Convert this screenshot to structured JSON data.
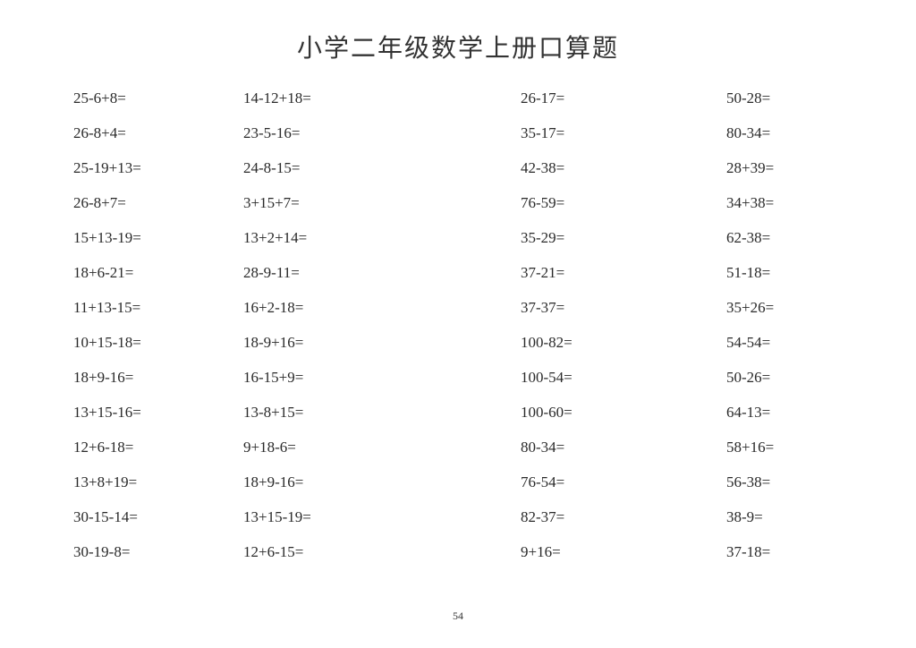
{
  "title": "小学二年级数学上册口算题",
  "page_number": "54",
  "background_color": "#ffffff",
  "text_color": "#333333",
  "title_fontsize": 28,
  "cell_fontsize": 17,
  "columns": 4,
  "rows": [
    [
      "25-6+8=",
      "14-12+18=",
      "26-17=",
      "50-28="
    ],
    [
      "26-8+4=",
      "23-5-16=",
      "35-17=",
      "80-34="
    ],
    [
      "25-19+13=",
      "24-8-15=",
      "42-38=",
      "28+39="
    ],
    [
      "26-8+7=",
      "3+15+7=",
      "76-59=",
      "34+38="
    ],
    [
      "15+13-19=",
      "13+2+14=",
      "35-29=",
      "62-38="
    ],
    [
      "18+6-21=",
      "28-9-11=",
      "37-21=",
      "51-18="
    ],
    [
      "11+13-15=",
      "16+2-18=",
      "37-37=",
      "35+26="
    ],
    [
      "10+15-18=",
      "18-9+16=",
      "100-82=",
      "54-54="
    ],
    [
      "18+9-16=",
      "16-15+9=",
      "100-54=",
      "50-26="
    ],
    [
      "13+15-16=",
      "13-8+15=",
      "100-60=",
      "64-13="
    ],
    [
      "12+6-18=",
      "9+18-6=",
      "80-34=",
      "58+16="
    ],
    [
      "13+8+19=",
      "18+9-16=",
      "76-54=",
      "56-38="
    ],
    [
      "30-15-14=",
      "13+15-19=",
      "82-37=",
      "38-9="
    ],
    [
      "30-19-8=",
      "12+6-15=",
      "9+16=",
      "37-18="
    ]
  ]
}
